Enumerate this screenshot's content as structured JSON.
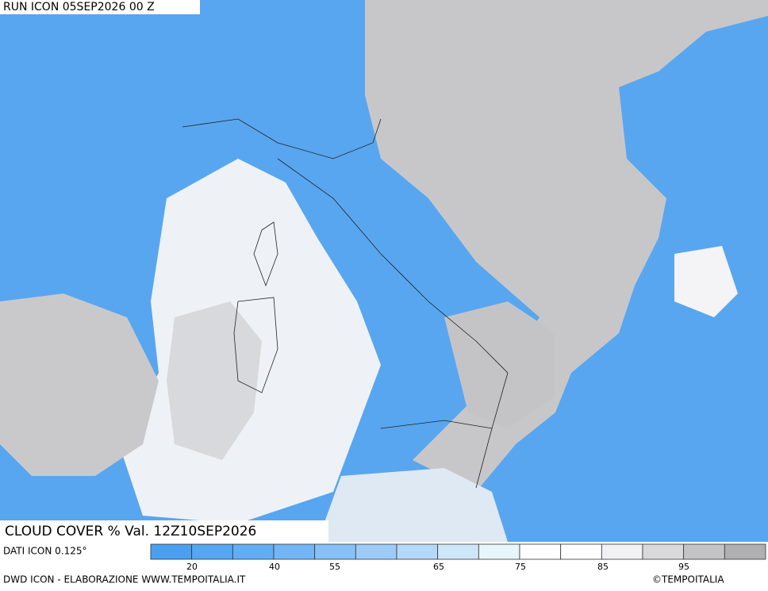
{
  "header": {
    "run": "RUN ICON 05SEP2026 00 Z"
  },
  "map": {
    "title": "CLOUD COVER % Val. 12Z10SEP2026"
  },
  "legend": {
    "source": "DATI ICON 0.125°",
    "ticks": [
      20,
      40,
      55,
      65,
      75,
      85,
      95
    ],
    "colors": [
      "#4a9ff0",
      "#56a6f2",
      "#62adf3",
      "#74b6f5",
      "#86c0f6",
      "#9ccbf7",
      "#b4d8f8",
      "#cde6f8",
      "#e6f6fb",
      "#ffffff",
      "#ffffff",
      "#f1f1f3",
      "#d9d9dc",
      "#c4c4c7",
      "#b0b0b3"
    ]
  },
  "footer": {
    "credit": "DWD ICON - ELABORAZIONE WWW.TEMPOITALIA.IT",
    "copyright": "©TEMPOITALIA"
  }
}
